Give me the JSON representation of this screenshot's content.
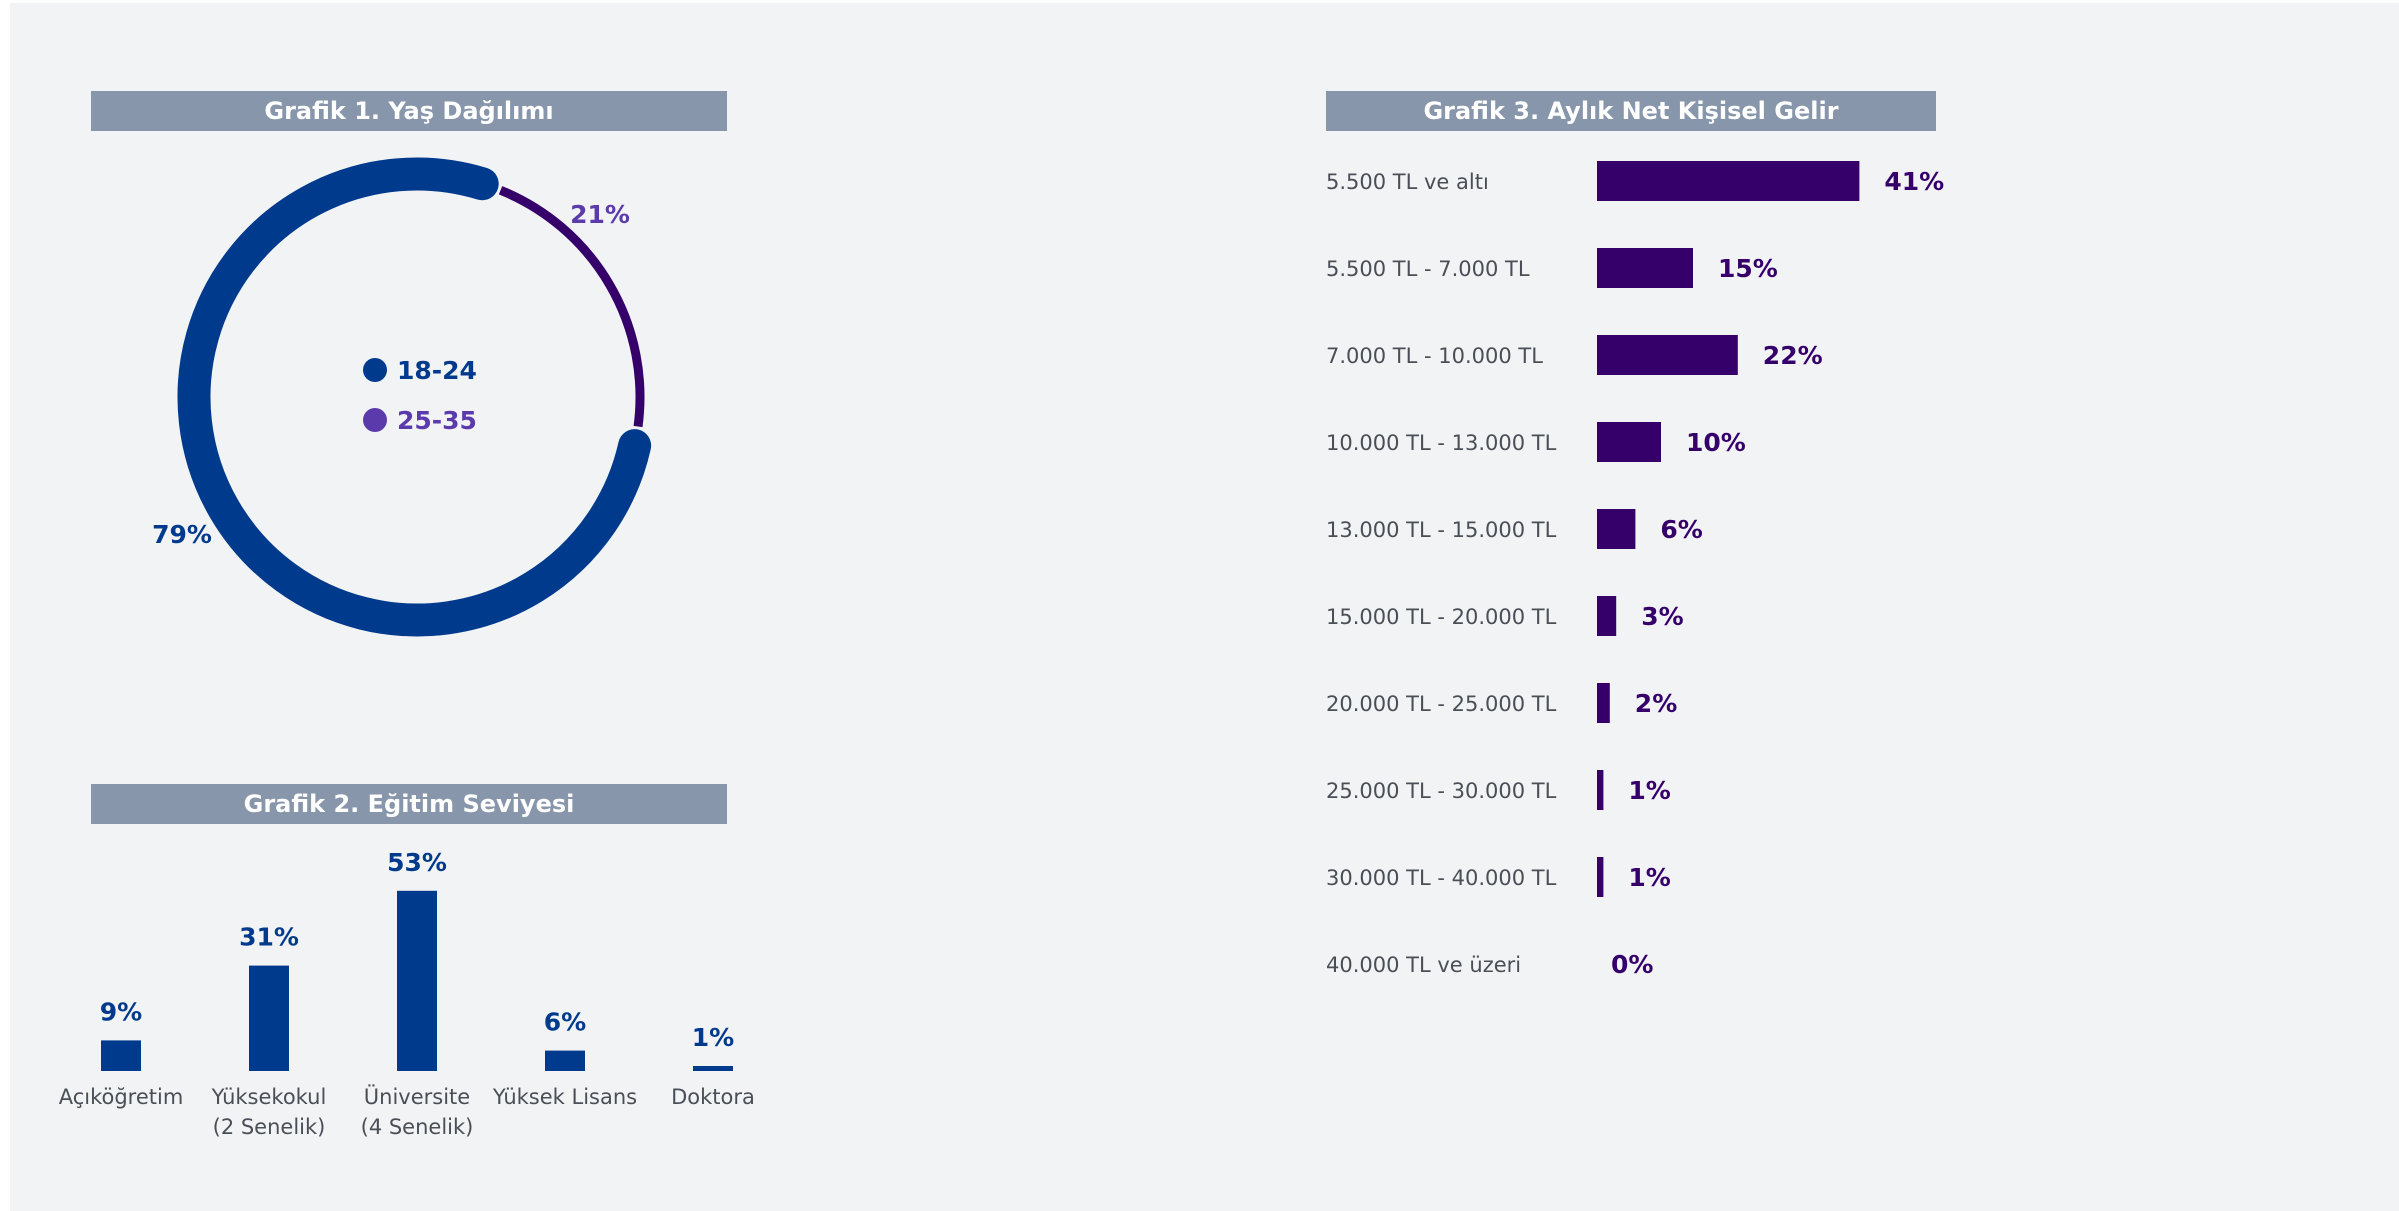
{
  "colors": {
    "header_bg": "#8796ab",
    "blue": "#003a8c",
    "purple": "#5b3aab",
    "dark_purple": "#36006b",
    "label_gray": "#4a4f57",
    "background": "#f2f3f5"
  },
  "chart_data": [
    {
      "type": "pie",
      "variant": "donut",
      "title": "Grafik 1. Yaş Dağılımı",
      "legend_position": "center",
      "slices": [
        {
          "name": "18-24",
          "value": 79,
          "label": "79%",
          "color": "#003a8c"
        },
        {
          "name": "25-35",
          "value": 21,
          "label": "21%",
          "color": "#5b3aab"
        }
      ]
    },
    {
      "type": "bar",
      "orientation": "vertical",
      "title": "Grafik 2. Eğitim Seviyesi",
      "categories": [
        "Açıköğretim",
        "Yüksekokul\n(2 Senelik)",
        "Üniversite\n(4 Senelik)",
        "Yüksek Lisans",
        "Doktora"
      ],
      "values": [
        9,
        31,
        53,
        6,
        1
      ],
      "value_labels": [
        "9%",
        "31%",
        "53%",
        "6%",
        "1%"
      ],
      "color": "#003a8c"
    },
    {
      "type": "bar",
      "orientation": "horizontal",
      "title": "Grafik 3. Aylık Net Kişisel Gelir",
      "categories": [
        "5.500 TL ve altı",
        "5.500 TL - 7.000 TL",
        "7.000 TL - 10.000 TL",
        "10.000 TL - 13.000 TL",
        "13.000 TL - 15.000 TL",
        "15.000 TL - 20.000 TL",
        "20.000 TL - 25.000 TL",
        "25.000 TL - 30.000 TL",
        "30.000 TL - 40.000 TL",
        "40.000 TL ve üzeri"
      ],
      "values": [
        41,
        15,
        22,
        10,
        6,
        3,
        2,
        1,
        1,
        0
      ],
      "value_labels": [
        "41%",
        "15%",
        "22%",
        "10%",
        "6%",
        "3%",
        "2%",
        "1%",
        "1%",
        "0%"
      ],
      "color": "#36006b"
    }
  ]
}
